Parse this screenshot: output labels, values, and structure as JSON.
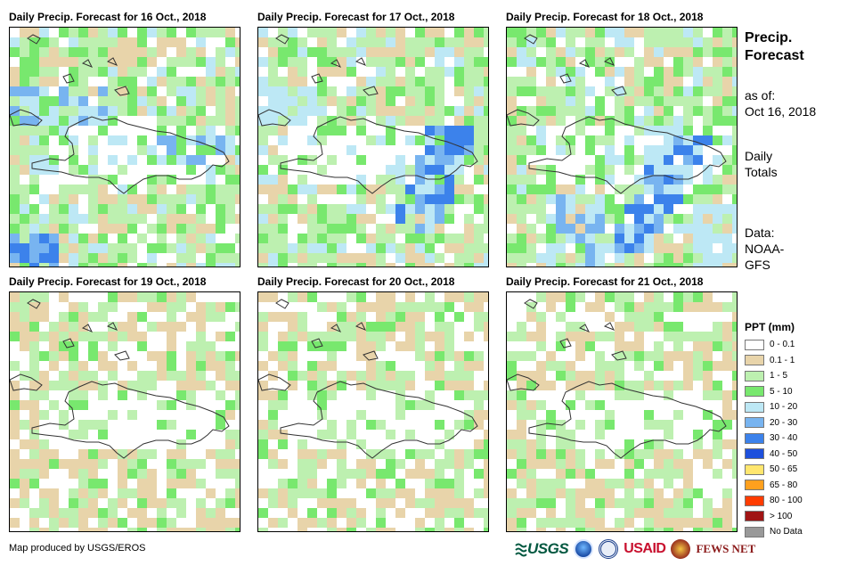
{
  "panels": [
    {
      "title": "Daily Precip. Forecast for 16 Oct., 2018",
      "seed": 16,
      "blue_band": "west"
    },
    {
      "title": "Daily Precip. Forecast for 17 Oct., 2018",
      "seed": 17,
      "blue_band": "east-south"
    },
    {
      "title": "Daily Precip. Forecast for 18 Oct., 2018",
      "seed": 18,
      "blue_band": "southeast"
    },
    {
      "title": "Daily Precip. Forecast for 19 Oct., 2018",
      "seed": 19,
      "blue_band": "none"
    },
    {
      "title": "Daily Precip. Forecast for 20 Oct., 2018",
      "seed": 20,
      "blue_band": "none"
    },
    {
      "title": "Daily Precip. Forecast for 21 Oct., 2018",
      "seed": 21,
      "blue_band": "none"
    }
  ],
  "side": {
    "title_line1": "Precip.",
    "title_line2": "Forecast",
    "asof_label": "as of:",
    "asof_date": "Oct 16, 2018",
    "totals_line1": "Daily",
    "totals_line2": "Totals",
    "data_label": "Data:",
    "data_source_line1": "NOAA-",
    "data_source_line2": "GFS"
  },
  "legend": {
    "title": "PPT (mm)",
    "items": [
      {
        "label": "0 - 0.1",
        "color": "#ffffff"
      },
      {
        "label": "0.1 - 1",
        "color": "#e8d4aa"
      },
      {
        "label": "1 - 5",
        "color": "#bdf0b0"
      },
      {
        "label": "5 - 10",
        "color": "#78e86e"
      },
      {
        "label": "10 - 20",
        "color": "#bde8f5"
      },
      {
        "label": "20 - 30",
        "color": "#78b4f0"
      },
      {
        "label": "30 - 40",
        "color": "#3c82eb"
      },
      {
        "label": "40 - 50",
        "color": "#1e50dc"
      },
      {
        "label": "50 - 65",
        "color": "#ffe66e"
      },
      {
        "label": "65 - 80",
        "color": "#ffa01e"
      },
      {
        "label": "80 - 100",
        "color": "#ff3c00"
      },
      {
        "label": "> 100",
        "color": "#a01414"
      },
      {
        "label": "No Data",
        "color": "#999999"
      }
    ]
  },
  "footer": {
    "credit": "Map produced by USGS/EROS",
    "logo_usgs": "USGS",
    "logo_usaid": "USAID",
    "logo_fews": "FEWS NET"
  }
}
